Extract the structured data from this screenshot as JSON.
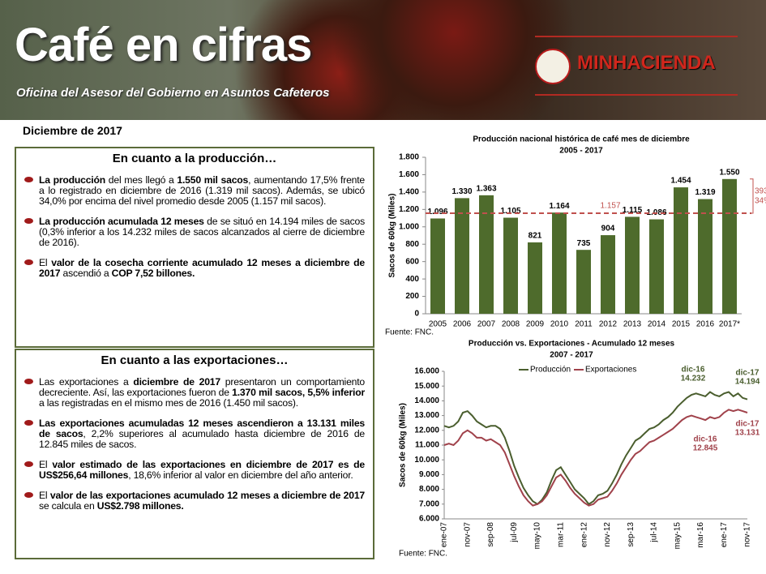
{
  "header": {
    "title": "Café en cifras",
    "subtitle": "Oficina del Asesor del Gobierno en Asuntos Cafeteros",
    "logo": "MINHACIENDA"
  },
  "date": "Diciembre de 2017",
  "sections": [
    {
      "heading": "En cuanto a la producción…",
      "paragraphs": [
        [
          {
            "text": "La producción",
            "bold": true
          },
          {
            "text": " del mes llegó a "
          },
          {
            "text": "1.550 mil sacos",
            "bold": true
          },
          {
            "text": ", aumentando 17,5% frente a lo registrado en diciembre de 2016 (1.319 mil sacos). Además, se ubicó 34,0% por encima del nivel promedio desde 2005 (1.157 mil sacos)."
          }
        ],
        [
          {
            "text": "La producción acumulada 12 meses",
            "bold": true
          },
          {
            "text": " de  se situó en 14.194 miles de sacos (0,3% inferior a los 14.232 miles de sacos alcanzados al cierre de diciembre de 2016)."
          }
        ],
        [
          {
            "text": "El "
          },
          {
            "text": "valor de la cosecha corriente acumulado 12 meses a diciembre de 2017",
            "bold": true
          },
          {
            "text": " ascendió a "
          },
          {
            "text": "COP 7,52 billones.",
            "bold": true
          }
        ]
      ]
    },
    {
      "heading": "En cuanto a las exportaciones…",
      "paragraphs": [
        [
          {
            "text": "Las exportaciones a "
          },
          {
            "text": "diciembre de 2017",
            "bold": true
          },
          {
            "text": " presentaron un comportamiento decreciente. Así, las exportaciones fueron de "
          },
          {
            "text": "1.370 mil sacos, 5,5% inferior",
            "bold": true
          },
          {
            "text": " a las registradas en el mismo mes de 2016 (1.450 mil sacos)."
          }
        ],
        [
          {
            "text": "Las exportaciones acumuladas 12 meses ascendieron a 13.131 miles de sacos",
            "bold": true
          },
          {
            "text": ", 2,2% superiores al acumulado hasta diciembre de 2016 de 12.845 miles de sacos."
          }
        ],
        [
          {
            "text": "El "
          },
          {
            "text": "valor estimado de las exportaciones en diciembre de 2017 es de US$256,64 millones",
            "bold": true
          },
          {
            "text": ", 18,6% inferior al valor en diciembre del año anterior."
          }
        ],
        [
          {
            "text": "El "
          },
          {
            "text": "valor de las exportaciones acumulado 12 meses a diciembre de 2017",
            "bold": true
          },
          {
            "text": " se calcula en "
          },
          {
            "text": "US$2.798 millones.",
            "bold": true
          }
        ]
      ]
    }
  ],
  "chart_data": [
    {
      "type": "bar",
      "title": [
        "Producción nacional histórica de café mes de diciembre",
        "2005 - 2017"
      ],
      "y_label": "Sacos de 60kg (Miles)",
      "source": "Fuente: FNC.",
      "categories": [
        "2005",
        "2006",
        "2007",
        "2008",
        "2009",
        "2010",
        "2011",
        "2012",
        "2013",
        "2014",
        "2015",
        "2016",
        "2017*"
      ],
      "values": [
        1096,
        1330,
        1363,
        1105,
        821,
        1164,
        735,
        904,
        1115,
        1086,
        1454,
        1319,
        1550
      ],
      "value_labels": [
        "1.096",
        "1.330",
        "1.363",
        "1.105",
        "821",
        "1.164",
        "735",
        "904",
        "1.115",
        "1.086",
        "1.454",
        "1.319",
        "1.550"
      ],
      "color": "#4e6b2c",
      "ylim": [
        0,
        1800
      ],
      "yticks": [
        0,
        200,
        400,
        600,
        800,
        {
          "value": 1000,
          "label": "1.000"
        },
        {
          "value": 1200,
          "label": "1.200"
        },
        {
          "value": 1400,
          "label": "1.400"
        },
        {
          "value": 1600,
          "label": "1.600"
        },
        {
          "value": 1800,
          "label": "1.800"
        }
      ],
      "reference_line": {
        "value": 1157,
        "label": "1.157",
        "color": "#c0504d"
      },
      "annotations": [
        "393",
        "34%"
      ]
    },
    {
      "type": "line",
      "title": [
        "Producción vs. Exportaciones - Acumulado 12 meses",
        "2007 - 2017"
      ],
      "y_label": "Sacos de 60kg (Miles)",
      "source": "Fuente: FNC.",
      "categories": [
        "ene-07",
        null,
        null,
        null,
        null,
        "nov-07",
        null,
        null,
        null,
        null,
        "sep-08",
        null,
        null,
        null,
        null,
        "jul-09",
        null,
        null,
        null,
        null,
        "may-10",
        null,
        null,
        null,
        null,
        "mar-11",
        null,
        null,
        null,
        null,
        "ene-12",
        null,
        null,
        null,
        null,
        "nov-12",
        null,
        null,
        null,
        null,
        "sep-13",
        null,
        null,
        null,
        null,
        "jul-14",
        null,
        null,
        null,
        null,
        "may-15",
        null,
        null,
        null,
        null,
        "mar-16",
        null,
        null,
        null,
        null,
        "ene-17",
        null,
        null,
        null,
        null,
        "nov-17"
      ],
      "series": [
        {
          "name": "Producción",
          "color": "#4a5e2e",
          "values": [
            12300,
            12200,
            12300,
            12600,
            13200,
            13300,
            13000,
            12600,
            12400,
            12200,
            12300,
            12300,
            12100,
            11500,
            10600,
            9600,
            8800,
            8100,
            7600,
            7200,
            7000,
            7300,
            7800,
            8600,
            9300,
            9500,
            9000,
            8500,
            8000,
            7700,
            7400,
            7000,
            7200,
            7600,
            7700,
            7900,
            8400,
            9000,
            9700,
            10300,
            10800,
            11300,
            11500,
            11800,
            12100,
            12200,
            12400,
            12700,
            12900,
            13200,
            13600,
            13900,
            14200,
            14400,
            14500,
            14400,
            14300,
            14600,
            14400,
            14300,
            14500,
            14600,
            14300,
            14500,
            14200,
            14100
          ]
        },
        {
          "name": "Exportaciones",
          "color": "#a0424b",
          "values": [
            11000,
            11100,
            11000,
            11300,
            11800,
            12000,
            11800,
            11500,
            11500,
            11300,
            11400,
            11200,
            11000,
            10500,
            9700,
            8900,
            8200,
            7600,
            7200,
            6900,
            7000,
            7200,
            7600,
            8200,
            8800,
            9000,
            8600,
            8100,
            7700,
            7400,
            7100,
            6900,
            7000,
            7300,
            7400,
            7500,
            7900,
            8400,
            9000,
            9500,
            10000,
            10400,
            10600,
            10900,
            11200,
            11300,
            11500,
            11700,
            11900,
            12100,
            12400,
            12700,
            12900,
            13000,
            12900,
            12800,
            12700,
            12900,
            12800,
            12900,
            13200,
            13400,
            13300,
            13400,
            13300,
            13200
          ]
        }
      ],
      "ylim": [
        6000,
        16000
      ],
      "yticks": [
        {
          "value": 6000,
          "label": "6.000"
        },
        {
          "value": 7000,
          "label": "7.000"
        },
        {
          "value": 8000,
          "label": "8.000"
        },
        {
          "value": 9000,
          "label": "9.000"
        },
        {
          "value": 10000,
          "label": "10.000"
        },
        {
          "value": 11000,
          "label": "11.000"
        },
        {
          "value": 12000,
          "label": "12.000"
        },
        {
          "value": 13000,
          "label": "13.000"
        },
        {
          "value": 14000,
          "label": "14.000"
        },
        {
          "value": 15000,
          "label": "15.000"
        },
        {
          "value": 16000,
          "label": "16.000"
        }
      ],
      "annotations": [
        {
          "date": "dic-16",
          "value": 14232,
          "label": "14.232"
        },
        {
          "date": "dic-17",
          "value": 14194,
          "label": "14.194"
        },
        {
          "date": "dic-16",
          "value": 12845,
          "label": "12.845"
        },
        {
          "date": "dic-17",
          "value": 13131,
          "label": "13.131"
        }
      ]
    }
  ]
}
